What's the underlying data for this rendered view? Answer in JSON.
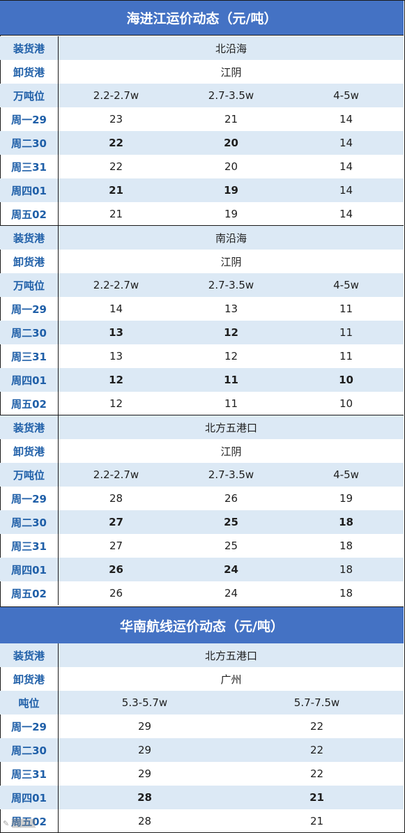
{
  "section1": {
    "title": "海进江运价动态（元/吨）",
    "labels": {
      "load": "装货港",
      "unload": "卸货港",
      "tonnage": "万吨位"
    },
    "groups": [
      {
        "load_port": "北沿海",
        "unload_port": "江阴",
        "tonnages": [
          "2.2-2.7w",
          "2.7-3.5w",
          "4-5w"
        ],
        "days": [
          {
            "day": "周一29",
            "values": [
              "23",
              "21",
              "14"
            ],
            "bold": [
              false,
              false,
              false
            ]
          },
          {
            "day": "周二30",
            "values": [
              "22",
              "20",
              "14"
            ],
            "bold": [
              true,
              true,
              false
            ]
          },
          {
            "day": "周三31",
            "values": [
              "22",
              "20",
              "14"
            ],
            "bold": [
              false,
              false,
              false
            ]
          },
          {
            "day": "周四01",
            "values": [
              "21",
              "19",
              "14"
            ],
            "bold": [
              true,
              true,
              false
            ]
          },
          {
            "day": "周五02",
            "values": [
              "21",
              "19",
              "14"
            ],
            "bold": [
              false,
              false,
              false
            ]
          }
        ]
      },
      {
        "load_port": "南沿海",
        "unload_port": "江阴",
        "tonnages": [
          "2.2-2.7w",
          "2.7-3.5w",
          "4-5w"
        ],
        "days": [
          {
            "day": "周一29",
            "values": [
              "14",
              "13",
              "11"
            ],
            "bold": [
              false,
              false,
              false
            ]
          },
          {
            "day": "周二30",
            "values": [
              "13",
              "12",
              "11"
            ],
            "bold": [
              true,
              true,
              false
            ]
          },
          {
            "day": "周三31",
            "values": [
              "13",
              "12",
              "11"
            ],
            "bold": [
              false,
              false,
              false
            ]
          },
          {
            "day": "周四01",
            "values": [
              "12",
              "11",
              "10"
            ],
            "bold": [
              true,
              true,
              true
            ]
          },
          {
            "day": "周五02",
            "values": [
              "12",
              "11",
              "10"
            ],
            "bold": [
              false,
              false,
              false
            ]
          }
        ]
      },
      {
        "load_port": "北方五港口",
        "unload_port": "江阴",
        "tonnages": [
          "2.2-2.7w",
          "2.7-3.5w",
          "4-5w"
        ],
        "days": [
          {
            "day": "周一29",
            "values": [
              "28",
              "26",
              "19"
            ],
            "bold": [
              false,
              false,
              false
            ]
          },
          {
            "day": "周二30",
            "values": [
              "27",
              "25",
              "18"
            ],
            "bold": [
              true,
              true,
              true
            ]
          },
          {
            "day": "周三31",
            "values": [
              "27",
              "25",
              "18"
            ],
            "bold": [
              false,
              false,
              false
            ]
          },
          {
            "day": "周四01",
            "values": [
              "26",
              "24",
              "18"
            ],
            "bold": [
              true,
              true,
              false
            ]
          },
          {
            "day": "周五02",
            "values": [
              "26",
              "24",
              "18"
            ],
            "bold": [
              false,
              false,
              false
            ]
          }
        ]
      }
    ]
  },
  "section2": {
    "title": "华南航线运价动态（元/吨）",
    "labels": {
      "load": "装货港",
      "unload": "卸货港",
      "tonnage": "吨位"
    },
    "load_port": "北方五港口",
    "unload_port": "广州",
    "tonnages": [
      "5.3-5.7w",
      "5.7-7.5w"
    ],
    "days": [
      {
        "day": "周一29",
        "values": [
          "29",
          "22"
        ],
        "bold": [
          false,
          false
        ]
      },
      {
        "day": "周二30",
        "values": [
          "29",
          "22"
        ],
        "bold": [
          false,
          false
        ]
      },
      {
        "day": "周三31",
        "values": [
          "29",
          "22"
        ],
        "bold": [
          false,
          false
        ]
      },
      {
        "day": "周四01",
        "values": [
          "28",
          "21"
        ],
        "bold": [
          true,
          true
        ]
      },
      {
        "day": "周五02",
        "values": [
          "28",
          "21"
        ],
        "bold": [
          false,
          false
        ]
      }
    ]
  },
  "colors": {
    "header_bg": "#4472c4",
    "band_bg": "#dce9f5",
    "label_text": "#1f5fa8"
  }
}
